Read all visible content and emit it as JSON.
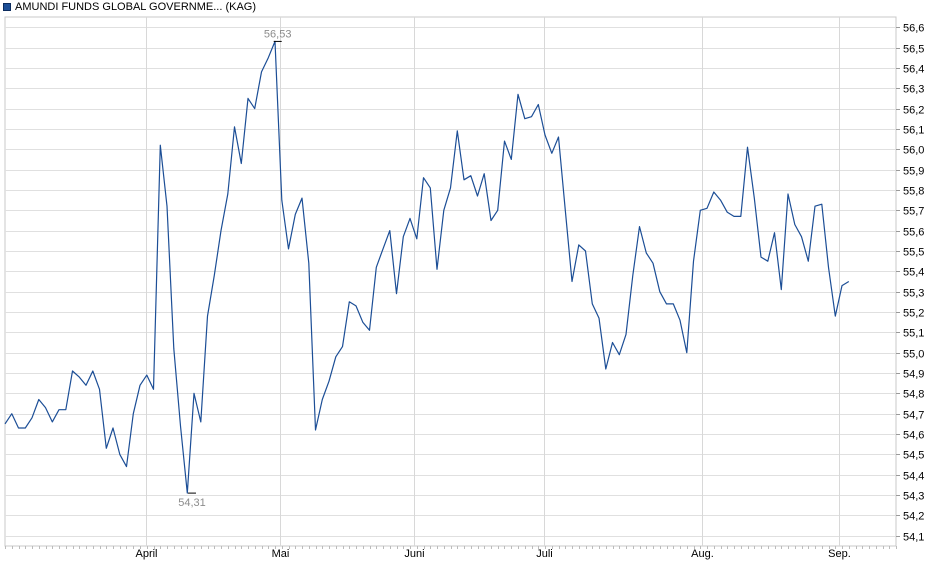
{
  "chart_data": {
    "type": "line",
    "legend": {
      "label": "AMUNDI FUNDS GLOBAL GOVERNME... (KAG)",
      "color": "#1c4e96",
      "placement": "top-left"
    },
    "y_ticks": [
      "54,1",
      "54,2",
      "54,3",
      "54,4",
      "54,5",
      "54,6",
      "54,7",
      "54,8",
      "54,9",
      "55,0",
      "55,1",
      "55,2",
      "55,3",
      "55,4",
      "55,5",
      "55,6",
      "55,7",
      "55,8",
      "55,9",
      "56,0",
      "56,1",
      "56,2",
      "56,3",
      "56,4",
      "56,5",
      "56,6"
    ],
    "ylim": [
      54.05,
      56.65
    ],
    "x_ticks": [
      "April",
      "Mai",
      "Juni",
      "Juli",
      "Aug.",
      "Sep."
    ],
    "x_tick_positions": [
      20.85,
      40.8,
      60.6,
      79.9,
      103.3,
      123.6
    ],
    "xlim": [
      0,
      132
    ],
    "grid": true,
    "line_color": "#1c4e96",
    "annotations": [
      {
        "label": "56,53",
        "x": 40.4,
        "y": 56.53,
        "kind": "max"
      },
      {
        "label": "54,31",
        "x": 27.7,
        "y": 54.31,
        "kind": "min"
      }
    ],
    "series": [
      {
        "values": [
          54.65,
          54.7,
          54.63,
          54.63,
          54.68,
          54.77,
          54.73,
          54.66,
          54.72,
          54.72,
          54.91,
          54.88,
          54.84,
          54.91,
          54.82,
          54.53,
          54.63,
          54.5,
          54.44,
          54.7,
          54.84,
          54.89,
          54.82,
          56.02,
          55.72,
          55.02,
          54.64,
          54.31,
          54.8,
          54.66,
          55.18,
          55.38,
          55.6,
          55.78,
          56.11,
          55.93,
          56.25,
          56.2,
          56.38,
          56.45,
          56.53,
          55.75,
          55.51,
          55.68,
          55.76,
          55.44,
          54.62,
          54.77,
          54.86,
          54.98,
          55.03,
          55.25,
          55.23,
          55.15,
          55.11,
          55.42,
          55.51,
          55.6,
          55.29,
          55.57,
          55.66,
          55.56,
          55.86,
          55.81,
          55.41,
          55.7,
          55.81,
          56.09,
          55.85,
          55.87,
          55.77,
          55.88,
          55.65,
          55.7,
          56.04,
          55.95,
          56.27,
          56.15,
          56.16,
          56.22,
          56.07,
          55.98,
          56.06,
          55.7,
          55.35,
          55.53,
          55.5,
          55.24,
          55.17,
          54.92,
          55.05,
          54.99,
          55.09,
          55.38,
          55.62,
          55.49,
          55.44,
          55.3,
          55.24,
          55.24,
          55.16,
          55.0,
          55.45,
          55.7,
          55.71,
          55.79,
          55.75,
          55.69,
          55.67,
          55.67,
          56.01,
          55.76,
          55.47,
          55.45,
          55.59,
          55.31,
          55.78,
          55.63,
          55.57,
          55.45,
          55.72,
          55.73,
          55.42,
          55.18,
          55.33,
          55.35
        ]
      }
    ]
  }
}
